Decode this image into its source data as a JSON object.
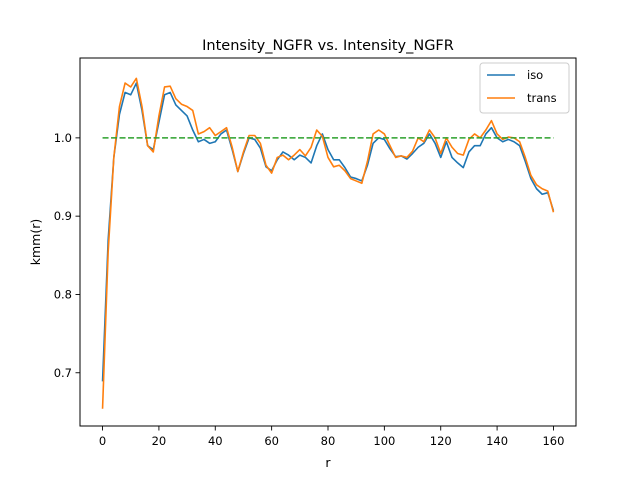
{
  "chart_data": {
    "type": "line",
    "title": "Intensity_NGFR vs. Intensity_NGFR",
    "xlabel": "r",
    "ylabel": "kmm(r)",
    "xlim": [
      -8,
      168
    ],
    "ylim": [
      0.632,
      1.102
    ],
    "xticks": [
      0,
      20,
      40,
      60,
      80,
      100,
      120,
      140,
      160
    ],
    "yticks": [
      0.7,
      0.8,
      0.9,
      1.0
    ],
    "xtick_labels": [
      "0",
      "20",
      "40",
      "60",
      "80",
      "100",
      "120",
      "140",
      "160"
    ],
    "ytick_labels": [
      "0.7",
      "0.8",
      "0.9",
      "1.0"
    ],
    "grid": false,
    "legend": "top-right",
    "reference_line": {
      "y": 1.0,
      "x_range": [
        0,
        160
      ],
      "color": "#2ca02c",
      "style": "dashed"
    },
    "series": [
      {
        "name": "iso",
        "color": "#1f77b4",
        "x": [
          0,
          2,
          4,
          6,
          8,
          10,
          12,
          14,
          16,
          18,
          20,
          22,
          24,
          26,
          28,
          30,
          32,
          34,
          36,
          38,
          40,
          42,
          44,
          46,
          48,
          50,
          52,
          54,
          56,
          58,
          60,
          62,
          64,
          66,
          68,
          70,
          72,
          74,
          76,
          78,
          80,
          82,
          84,
          86,
          88,
          90,
          92,
          94,
          96,
          98,
          100,
          102,
          104,
          106,
          108,
          110,
          112,
          114,
          116,
          118,
          120,
          122,
          124,
          126,
          128,
          130,
          132,
          134,
          136,
          138,
          140,
          142,
          144,
          146,
          148,
          150,
          152,
          154,
          156,
          158,
          160
        ],
        "y": [
          0.689,
          0.87,
          0.975,
          1.03,
          1.058,
          1.055,
          1.07,
          1.035,
          0.99,
          0.985,
          1.02,
          1.055,
          1.058,
          1.042,
          1.035,
          1.028,
          1.01,
          0.995,
          0.998,
          0.993,
          0.995,
          1.005,
          1.01,
          0.985,
          0.957,
          0.98,
          1.0,
          0.998,
          0.987,
          0.963,
          0.958,
          0.972,
          0.982,
          0.978,
          0.972,
          0.978,
          0.975,
          0.968,
          0.99,
          1.005,
          0.985,
          0.972,
          0.972,
          0.962,
          0.95,
          0.948,
          0.945,
          0.965,
          0.993,
          1.0,
          0.998,
          0.986,
          0.976,
          0.977,
          0.973,
          0.98,
          0.988,
          0.993,
          1.005,
          0.993,
          0.975,
          0.995,
          0.975,
          0.968,
          0.962,
          0.982,
          0.99,
          0.99,
          1.005,
          1.013,
          1.0,
          0.995,
          0.998,
          0.995,
          0.99,
          0.97,
          0.948,
          0.935,
          0.928,
          0.93,
          0.907
        ]
      },
      {
        "name": "trans",
        "color": "#ff7f0e",
        "x": [
          0,
          2,
          4,
          6,
          8,
          10,
          12,
          14,
          16,
          18,
          20,
          22,
          24,
          26,
          28,
          30,
          32,
          34,
          36,
          38,
          40,
          42,
          44,
          46,
          48,
          50,
          52,
          54,
          56,
          58,
          60,
          62,
          64,
          66,
          68,
          70,
          72,
          74,
          76,
          78,
          80,
          82,
          84,
          86,
          88,
          90,
          92,
          94,
          96,
          98,
          100,
          102,
          104,
          106,
          108,
          110,
          112,
          114,
          116,
          118,
          120,
          122,
          124,
          126,
          128,
          130,
          132,
          134,
          136,
          138,
          140,
          142,
          144,
          146,
          148,
          150,
          152,
          154,
          156,
          158,
          160
        ],
        "y": [
          0.654,
          0.855,
          0.975,
          1.04,
          1.07,
          1.065,
          1.076,
          1.04,
          0.99,
          0.982,
          1.028,
          1.065,
          1.066,
          1.05,
          1.043,
          1.04,
          1.035,
          1.005,
          1.008,
          1.013,
          1.003,
          1.008,
          1.013,
          0.988,
          0.957,
          0.982,
          1.003,
          1.003,
          0.993,
          0.965,
          0.955,
          0.975,
          0.978,
          0.972,
          0.978,
          0.985,
          0.977,
          0.988,
          1.01,
          1.002,
          0.975,
          0.963,
          0.965,
          0.958,
          0.948,
          0.945,
          0.942,
          0.97,
          1.005,
          1.01,
          1.005,
          0.99,
          0.975,
          0.977,
          0.975,
          0.983,
          1.0,
          0.995,
          1.01,
          1.0,
          0.98,
          1.0,
          0.988,
          0.98,
          0.978,
          0.998,
          1.005,
          1.0,
          1.01,
          1.022,
          1.005,
          0.998,
          1.001,
          1.0,
          0.995,
          0.975,
          0.952,
          0.94,
          0.935,
          0.932,
          0.905
        ]
      }
    ]
  }
}
